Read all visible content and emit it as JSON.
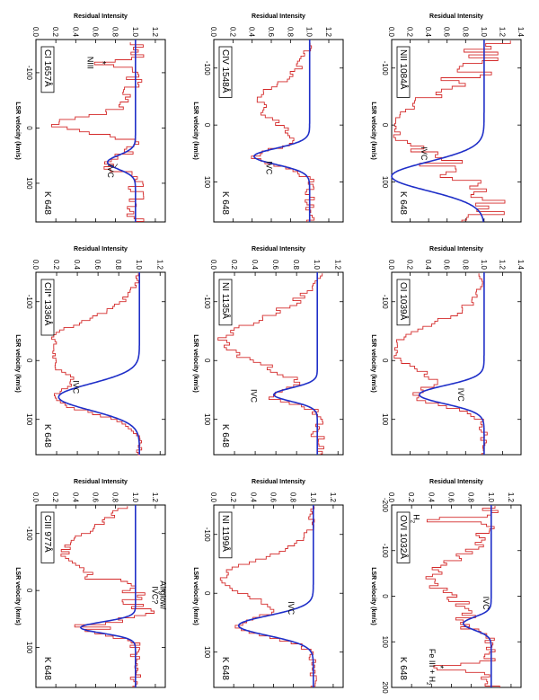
{
  "figure_title": "",
  "colors": {
    "data": "#d42a2a",
    "model": "#1f2fc8",
    "axis": "#000000"
  },
  "chart_data": [
    {
      "type": "line",
      "id": "p1",
      "species": "CI 1657Å",
      "object": "K 648",
      "xlabel": "LSR velocity (km/s)",
      "ylabel": "Residual Intensity",
      "xlim": [
        -160,
        170
      ],
      "ylim": [
        0,
        1.3
      ],
      "xticks": [
        -100,
        0,
        100
      ],
      "yticks": [
        0,
        0.2,
        0.4,
        0.6,
        0.8,
        1.0,
        1.2
      ],
      "annotations": [
        {
          "text": "IVC",
          "x": 78,
          "y": 0.72,
          "target_x": 65,
          "target_y": 0.82
        },
        {
          "text": "NIII",
          "x": -118,
          "y": 0.52
        },
        {
          "text": "*",
          "x": -118,
          "y": 0.64,
          "mark": true
        }
      ],
      "model": {
        "continuum": 1.0,
        "components": [
          {
            "v": 62,
            "depth": 0.28,
            "b": 18
          }
        ]
      },
      "data": {
        "x0": -155,
        "dx": 4.5,
        "noise": 0.09,
        "components": [
          {
            "v": -10,
            "depth": 0.78,
            "b": 20
          },
          {
            "v": -55,
            "depth": 0.12,
            "b": 20
          },
          {
            "v": 62,
            "depth": 0.28,
            "b": 18
          }
        ],
        "features": [
          {
            "v": -118,
            "depth": 0.42,
            "b": 6
          }
        ],
        "seed": 3
      }
    },
    {
      "type": "line",
      "id": "p2",
      "species": "CII* 1336Å",
      "object": "K 648",
      "xlabel": "LSR velocity (km/s)",
      "ylabel": "Residual Intensity",
      "xlim": [
        -150,
        160
      ],
      "ylim": [
        0,
        1.25
      ],
      "xticks": [
        -100,
        0,
        100
      ],
      "yticks": [
        0,
        0.2,
        0.4,
        0.6,
        0.8,
        1.0,
        1.2
      ],
      "annotations": [
        {
          "text": "IVC",
          "x": 45,
          "y": 0.36
        }
      ],
      "model": {
        "continuum": 1.0,
        "components": [
          {
            "v": 62,
            "depth": 0.78,
            "b": 32
          }
        ]
      },
      "data": {
        "x0": -148,
        "dx": 4.0,
        "noise": 0.03,
        "components": [
          {
            "v": -20,
            "depth": 1.0,
            "b": 62
          },
          {
            "v": 62,
            "depth": 0.78,
            "b": 32
          }
        ],
        "features": [],
        "seed": 7,
        "floor": 0.15
      }
    },
    {
      "type": "line",
      "id": "p3",
      "species": "CIII 977Å",
      "object": "K 648",
      "xlabel": "LSR velocity (km/s)",
      "ylabel": "Residual Intensity",
      "xlim": [
        -150,
        170
      ],
      "ylim": [
        0,
        1.3
      ],
      "xticks": [
        -100,
        0,
        100
      ],
      "yticks": [
        0,
        0.2,
        0.4,
        0.6,
        0.8,
        1.0,
        1.2
      ],
      "annotations": [
        {
          "text": "Airglow/",
          "x": 8,
          "y": 1.25
        },
        {
          "text": "IVC?",
          "x": 8,
          "y": 1.17
        }
      ],
      "model": {
        "continuum": 1.0,
        "components": [
          {
            "v": 65,
            "depth": 0.55,
            "b": 14
          }
        ]
      },
      "data": {
        "x0": -148,
        "dx": 4.0,
        "noise": 0.06,
        "components": [
          {
            "v": -70,
            "depth": 0.7,
            "b": 60
          },
          {
            "v": 65,
            "depth": 0.55,
            "b": 14
          }
        ],
        "features": [],
        "seed": 11,
        "spike": {
          "v": 20,
          "width": 45,
          "amp": 0.32
        }
      }
    },
    {
      "type": "line",
      "id": "p4",
      "species": "CIV 1548Å",
      "object": "K 648",
      "xlabel": "LSR velocity (km/s)",
      "ylabel": "Residual Intensity",
      "xlim": [
        -150,
        170
      ],
      "ylim": [
        0,
        1.35
      ],
      "xticks": [
        -100,
        0,
        100
      ],
      "yticks": [
        0,
        0.2,
        0.4,
        0.6,
        0.8,
        1.0,
        1.2
      ],
      "annotations": [
        {
          "text": "IVC",
          "x": 75,
          "y": 0.55
        }
      ],
      "model": {
        "continuum": 1.0,
        "components": [
          {
            "v": 55,
            "depth": 0.58,
            "b": 20
          }
        ]
      },
      "data": {
        "x0": -148,
        "dx": 4.5,
        "noise": 0.06,
        "components": [
          {
            "v": -40,
            "depth": 0.5,
            "b": 55
          },
          {
            "v": 55,
            "depth": 0.58,
            "b": 20
          }
        ],
        "features": [],
        "seed": 19
      }
    },
    {
      "type": "line",
      "id": "p5",
      "species": "NI 1135Å",
      "object": "K 648",
      "xlabel": "LSR velocity (km/s)",
      "ylabel": "Residual Intensity",
      "xlim": [
        -150,
        160
      ],
      "ylim": [
        0,
        1.25
      ],
      "xticks": [
        -100,
        0,
        100
      ],
      "yticks": [
        0,
        0.2,
        0.4,
        0.6,
        0.8,
        1.0,
        1.2
      ],
      "annotations": [
        {
          "text": "IVC",
          "x": 60,
          "y": 0.36
        }
      ],
      "model": {
        "continuum": 1.0,
        "components": [
          {
            "v": 58,
            "depth": 0.42,
            "b": 16
          }
        ]
      },
      "data": {
        "x0": -148,
        "dx": 4.2,
        "noise": 0.07,
        "components": [
          {
            "v": -35,
            "depth": 0.9,
            "b": 55
          },
          {
            "v": 58,
            "depth": 0.42,
            "b": 16
          }
        ],
        "features": [],
        "seed": 23
      }
    },
    {
      "type": "line",
      "id": "p6",
      "species": "NI 1199Å",
      "object": "K 648",
      "xlabel": "LSR velocity (km/s)",
      "ylabel": "Residual Intensity",
      "xlim": [
        -150,
        160
      ],
      "ylim": [
        0,
        1.3
      ],
      "xticks": [
        -100,
        0,
        100
      ],
      "yticks": [
        0,
        0.2,
        0.4,
        0.6,
        0.8,
        1.0,
        1.2
      ],
      "annotations": [
        {
          "text": "IVC",
          "x": 25,
          "y": 0.75
        }
      ],
      "model": {
        "continuum": 1.0,
        "components": [
          {
            "v": 55,
            "depth": 0.75,
            "b": 24
          }
        ]
      },
      "data": {
        "x0": -148,
        "dx": 4.5,
        "noise": 0.04,
        "components": [
          {
            "v": -25,
            "depth": 0.92,
            "b": 48
          },
          {
            "v": 55,
            "depth": 0.75,
            "b": 24
          }
        ],
        "features": [],
        "seed": 31
      }
    },
    {
      "type": "line",
      "id": "p7",
      "species": "NII 1084Å",
      "object": "K 648",
      "xlabel": "LSR velocity (km/s)",
      "ylabel": "Residual Intensity",
      "xlim": [
        -150,
        170
      ],
      "ylim": [
        0,
        1.4
      ],
      "xticks": [
        -100,
        0,
        100
      ],
      "yticks": [
        0,
        0.2,
        0.4,
        0.6,
        0.8,
        1.0,
        1.2,
        1.4
      ],
      "annotations": [
        {
          "text": "IVC",
          "x": 50,
          "y": 0.32
        }
      ],
      "model": {
        "continuum": 1.0,
        "components": [
          {
            "v": 90,
            "depth": 1.0,
            "b": 36
          }
        ]
      },
      "data": {
        "x0": -148,
        "dx": 5.0,
        "noise": 0.14,
        "components": [
          {
            "v": 0,
            "depth": 1.0,
            "b": 70
          }
        ],
        "features": [],
        "seed": 41,
        "wild": true,
        "floor": 0
      }
    },
    {
      "type": "line",
      "id": "p8",
      "species": "OI 1039Å",
      "object": "",
      "xlabel": "LSR velocity (km/s)",
      "ylabel": "Residual Intensity",
      "xlim": [
        -150,
        160
      ],
      "ylim": [
        0,
        1.4
      ],
      "xticks": [
        -100,
        0,
        100
      ],
      "yticks": [
        0,
        0.2,
        0.4,
        0.6,
        0.8,
        1.0,
        1.2,
        1.4
      ],
      "annotations": [
        {
          "text": "IVC",
          "x": 58,
          "y": 0.72
        }
      ],
      "model": {
        "continuum": 1.0,
        "components": [
          {
            "v": 58,
            "depth": 0.7,
            "b": 22
          }
        ]
      },
      "data": {
        "x0": -148,
        "dx": 4.5,
        "noise": 0.05,
        "components": [
          {
            "v": -20,
            "depth": 1.0,
            "b": 58
          },
          {
            "v": 58,
            "depth": 0.7,
            "b": 22
          }
        ],
        "features": [],
        "seed": 53,
        "floor": 0.02
      }
    },
    {
      "type": "line",
      "id": "p9",
      "species": "OVI 1032Å",
      "object": "K 648",
      "xlabel": "LSR velocity (km/s)",
      "ylabel": "Residual Intensity",
      "xlim": [
        -200,
        200
      ],
      "ylim": [
        0,
        1.3
      ],
      "xticks": [
        -200,
        -100,
        0,
        100,
        200
      ],
      "yticks": [
        0,
        0.2,
        0.4,
        0.6,
        0.8,
        1.0,
        1.2
      ],
      "annotations": [
        {
          "text": "IVC",
          "x": 15,
          "y": 0.92
        },
        {
          "text": "Fe III + H",
          "x": 155,
          "y": 0.38,
          "sub": "2",
          "tail": "+ H"
        },
        {
          "text": "H",
          "x": -170,
          "y": 0.22,
          "sub": "2"
        },
        {
          "text": "*",
          "x": 155,
          "y": 0.46,
          "mark": true
        }
      ],
      "model": {
        "continuum": 1.0,
        "components": [
          {
            "v": 60,
            "depth": 0.28,
            "b": 20
          }
        ]
      },
      "data": {
        "x0": -198,
        "dx": 5.0,
        "noise": 0.1,
        "components": [
          {
            "v": -40,
            "depth": 0.6,
            "b": 65
          },
          {
            "v": 60,
            "depth": 0.28,
            "b": 20
          }
        ],
        "features": [
          {
            "v": 155,
            "depth": 0.55,
            "b": 10
          },
          {
            "v": -170,
            "depth": 0.7,
            "b": 6
          }
        ],
        "seed": 61
      }
    }
  ]
}
